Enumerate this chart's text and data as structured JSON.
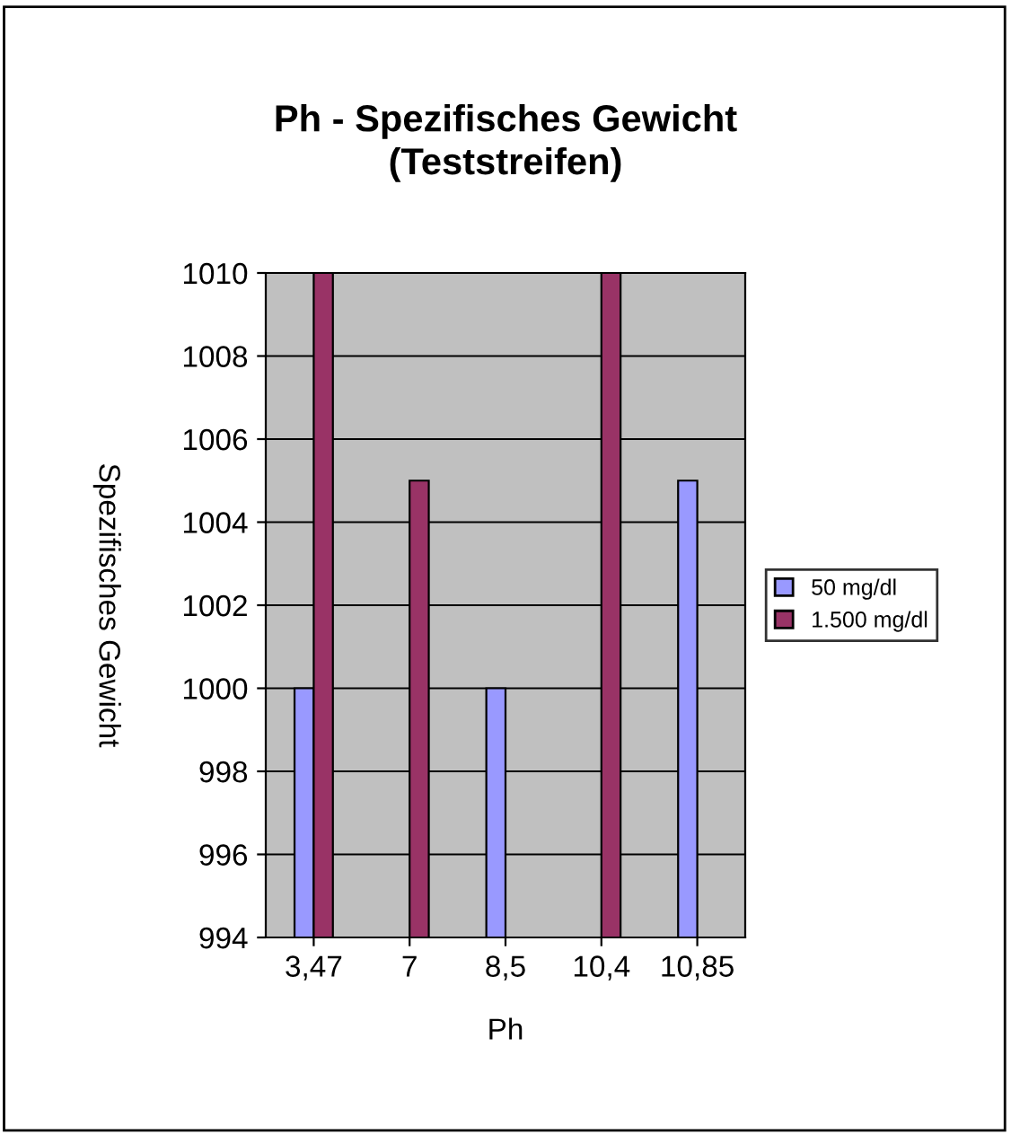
{
  "chart_data": {
    "type": "bar",
    "title": "Ph - Spezifisches Gewicht\n(Teststreifen)",
    "xlabel": "Ph",
    "ylabel": "Spezifisches Gewicht",
    "categories": [
      "3,47",
      "7",
      "8,5",
      "10,4",
      "10,85"
    ],
    "series": [
      {
        "name": "50 mg/dl",
        "color": "#9999ff",
        "values": [
          1000,
          null,
          1000,
          null,
          1005
        ]
      },
      {
        "name": "1.500 mg/dl",
        "color": "#993366",
        "values": [
          1010,
          1005,
          null,
          1010,
          null
        ]
      }
    ],
    "ylim": [
      994,
      1010
    ],
    "yticks": [
      994,
      996,
      998,
      1000,
      1002,
      1004,
      1006,
      1008,
      1010
    ],
    "grid": "y",
    "legend": "right"
  }
}
